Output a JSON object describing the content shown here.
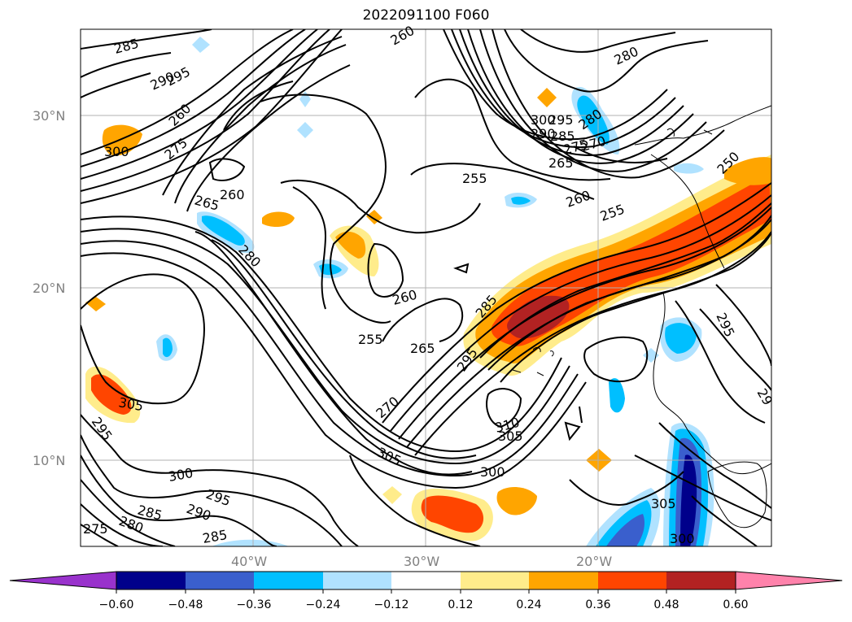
{
  "title": "2022091100 F060",
  "map": {
    "lat_labels": [
      "30°N",
      "20°N",
      "10°N"
    ],
    "lon_labels": [
      "40°W",
      "30°W",
      "20°W"
    ],
    "contour_labels": [
      "285",
      "290",
      "295",
      "260",
      "280",
      "300",
      "290",
      "295",
      "285",
      "280",
      "275",
      "270",
      "265",
      "300",
      "275",
      "260",
      "265",
      "260",
      "255",
      "260",
      "280",
      "250",
      "260",
      "255",
      "255",
      "265",
      "285",
      "295",
      "305",
      "295",
      "270",
      "310",
      "305",
      "300",
      "305",
      "295",
      "300",
      "275",
      "280",
      "285",
      "290",
      "285",
      "29"
    ],
    "colors": {
      "neg_0_60_plus": "#9932cc",
      "neg_0_60": "#00008b",
      "neg_0_48": "#3a5fcd",
      "neg_0_36": "#00bfff",
      "neg_0_24": "#b0e2ff",
      "zero": "#ffffff",
      "pos_0_12": "#ffec8b",
      "pos_0_24": "#ffa500",
      "pos_0_36": "#ff4500",
      "pos_0_48": "#b22222",
      "pos_0_60_plus": "#ff82ab"
    }
  },
  "colorbar": {
    "ticks": [
      "−0.60",
      "−0.48",
      "−0.36",
      "−0.24",
      "−0.12",
      "0.12",
      "0.24",
      "0.36",
      "0.48",
      "0.60"
    ]
  }
}
